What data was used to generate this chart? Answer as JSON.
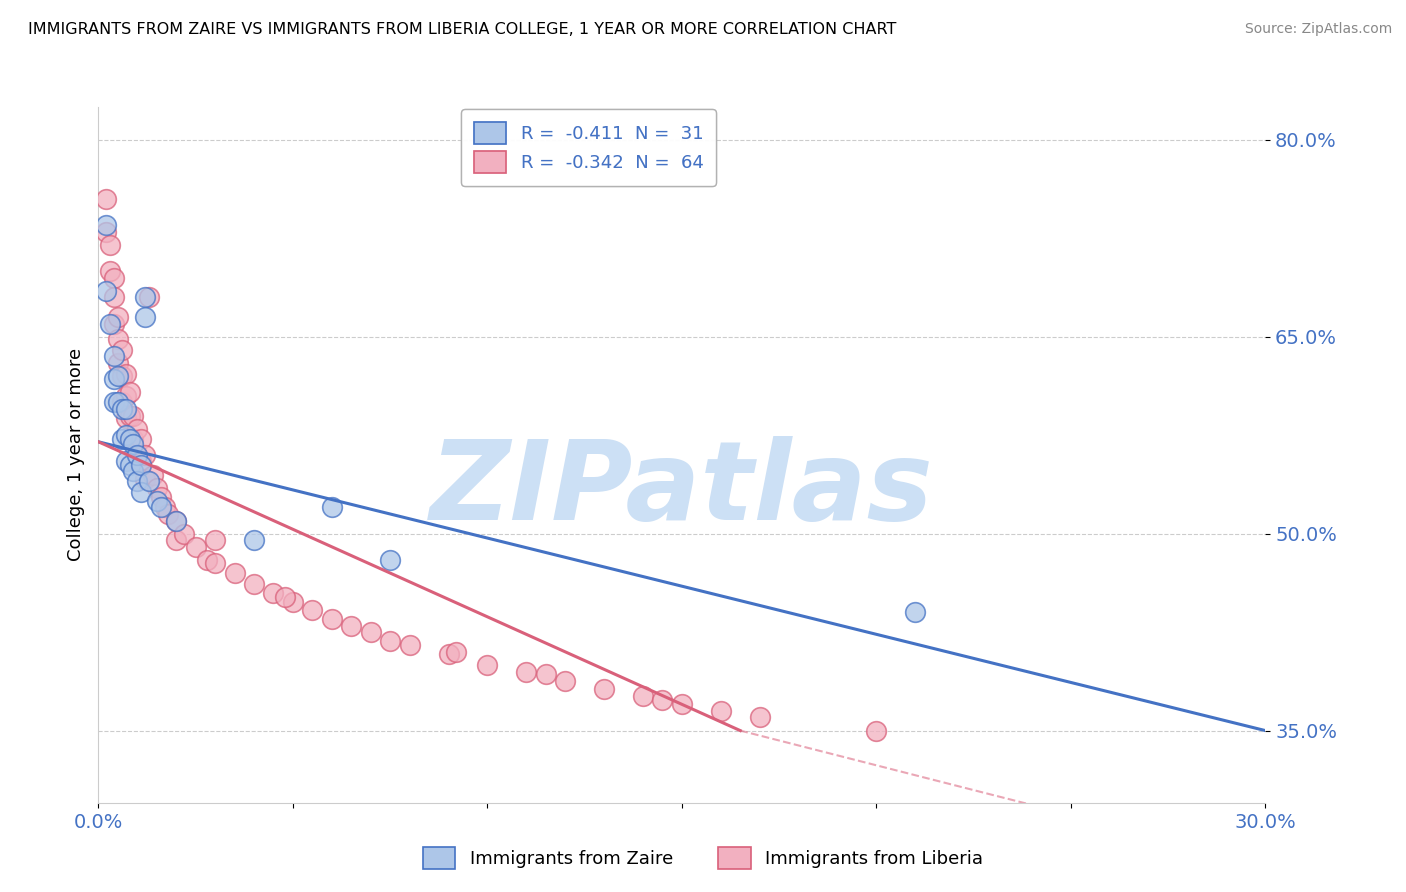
{
  "title": "IMMIGRANTS FROM ZAIRE VS IMMIGRANTS FROM LIBERIA COLLEGE, 1 YEAR OR MORE CORRELATION CHART",
  "source": "Source: ZipAtlas.com",
  "ylabel": "College, 1 year or more",
  "blue_label": "Immigrants from Zaire",
  "pink_label": "Immigrants from Liberia",
  "blue_R": -0.411,
  "blue_N": 31,
  "pink_R": -0.342,
  "pink_N": 64,
  "blue_color": "#adc6e8",
  "pink_color": "#f2b0c0",
  "blue_line_color": "#4472c4",
  "pink_line_color": "#d9607a",
  "watermark": "ZIPatlas",
  "watermark_color": "#cce0f5",
  "xlim": [
    0.0,
    0.3
  ],
  "ylim": [
    0.295,
    0.825
  ],
  "yticks": [
    0.35,
    0.5,
    0.65,
    0.8
  ],
  "ytick_labels": [
    "35.0%",
    "50.0%",
    "65.0%",
    "80.0%"
  ],
  "xticks": [
    0.0,
    0.05,
    0.1,
    0.15,
    0.2,
    0.25,
    0.3
  ],
  "xtick_labels": [
    "0.0%",
    "",
    "",
    "",
    "",
    "",
    "30.0%"
  ],
  "blue_scatter": [
    [
      0.002,
      0.735
    ],
    [
      0.002,
      0.685
    ],
    [
      0.003,
      0.66
    ],
    [
      0.004,
      0.635
    ],
    [
      0.004,
      0.618
    ],
    [
      0.004,
      0.6
    ],
    [
      0.005,
      0.62
    ],
    [
      0.005,
      0.6
    ],
    [
      0.006,
      0.595
    ],
    [
      0.006,
      0.572
    ],
    [
      0.007,
      0.595
    ],
    [
      0.007,
      0.575
    ],
    [
      0.007,
      0.555
    ],
    [
      0.008,
      0.572
    ],
    [
      0.008,
      0.552
    ],
    [
      0.009,
      0.568
    ],
    [
      0.009,
      0.548
    ],
    [
      0.01,
      0.56
    ],
    [
      0.01,
      0.54
    ],
    [
      0.011,
      0.552
    ],
    [
      0.011,
      0.532
    ],
    [
      0.013,
      0.54
    ],
    [
      0.015,
      0.525
    ],
    [
      0.016,
      0.52
    ],
    [
      0.02,
      0.51
    ],
    [
      0.04,
      0.495
    ],
    [
      0.075,
      0.48
    ],
    [
      0.21,
      0.44
    ],
    [
      0.012,
      0.68
    ],
    [
      0.012,
      0.665
    ],
    [
      0.06,
      0.52
    ]
  ],
  "pink_scatter": [
    [
      0.002,
      0.755
    ],
    [
      0.002,
      0.73
    ],
    [
      0.003,
      0.72
    ],
    [
      0.003,
      0.7
    ],
    [
      0.004,
      0.695
    ],
    [
      0.004,
      0.68
    ],
    [
      0.004,
      0.66
    ],
    [
      0.005,
      0.665
    ],
    [
      0.005,
      0.648
    ],
    [
      0.005,
      0.63
    ],
    [
      0.006,
      0.64
    ],
    [
      0.006,
      0.62
    ],
    [
      0.006,
      0.6
    ],
    [
      0.007,
      0.622
    ],
    [
      0.007,
      0.605
    ],
    [
      0.007,
      0.588
    ],
    [
      0.008,
      0.608
    ],
    [
      0.008,
      0.59
    ],
    [
      0.008,
      0.572
    ],
    [
      0.009,
      0.59
    ],
    [
      0.009,
      0.572
    ],
    [
      0.01,
      0.58
    ],
    [
      0.01,
      0.56
    ],
    [
      0.011,
      0.572
    ],
    [
      0.011,
      0.555
    ],
    [
      0.012,
      0.56
    ],
    [
      0.012,
      0.542
    ],
    [
      0.014,
      0.545
    ],
    [
      0.015,
      0.535
    ],
    [
      0.016,
      0.528
    ],
    [
      0.017,
      0.52
    ],
    [
      0.018,
      0.515
    ],
    [
      0.02,
      0.51
    ],
    [
      0.02,
      0.495
    ],
    [
      0.022,
      0.5
    ],
    [
      0.025,
      0.49
    ],
    [
      0.028,
      0.48
    ],
    [
      0.03,
      0.478
    ],
    [
      0.035,
      0.47
    ],
    [
      0.04,
      0.462
    ],
    [
      0.045,
      0.455
    ],
    [
      0.05,
      0.448
    ],
    [
      0.055,
      0.442
    ],
    [
      0.06,
      0.435
    ],
    [
      0.065,
      0.43
    ],
    [
      0.07,
      0.425
    ],
    [
      0.08,
      0.415
    ],
    [
      0.09,
      0.408
    ],
    [
      0.1,
      0.4
    ],
    [
      0.11,
      0.395
    ],
    [
      0.12,
      0.388
    ],
    [
      0.13,
      0.382
    ],
    [
      0.14,
      0.376
    ],
    [
      0.15,
      0.37
    ],
    [
      0.16,
      0.365
    ],
    [
      0.17,
      0.36
    ],
    [
      0.03,
      0.495
    ],
    [
      0.013,
      0.68
    ],
    [
      0.2,
      0.35
    ],
    [
      0.048,
      0.452
    ],
    [
      0.075,
      0.418
    ],
    [
      0.092,
      0.41
    ],
    [
      0.115,
      0.393
    ],
    [
      0.145,
      0.373
    ]
  ],
  "blue_line_x": [
    0.0,
    0.3
  ],
  "blue_line_y": [
    0.57,
    0.35
  ],
  "pink_line_x": [
    0.0,
    0.165
  ],
  "pink_line_y": [
    0.57,
    0.35
  ],
  "dashed_line_x": [
    0.165,
    0.3
  ],
  "dashed_line_y": [
    0.35,
    0.248
  ],
  "background_color": "#ffffff",
  "grid_color": "#cccccc",
  "title_color": "#000000",
  "axis_label_color": "#4472c4"
}
